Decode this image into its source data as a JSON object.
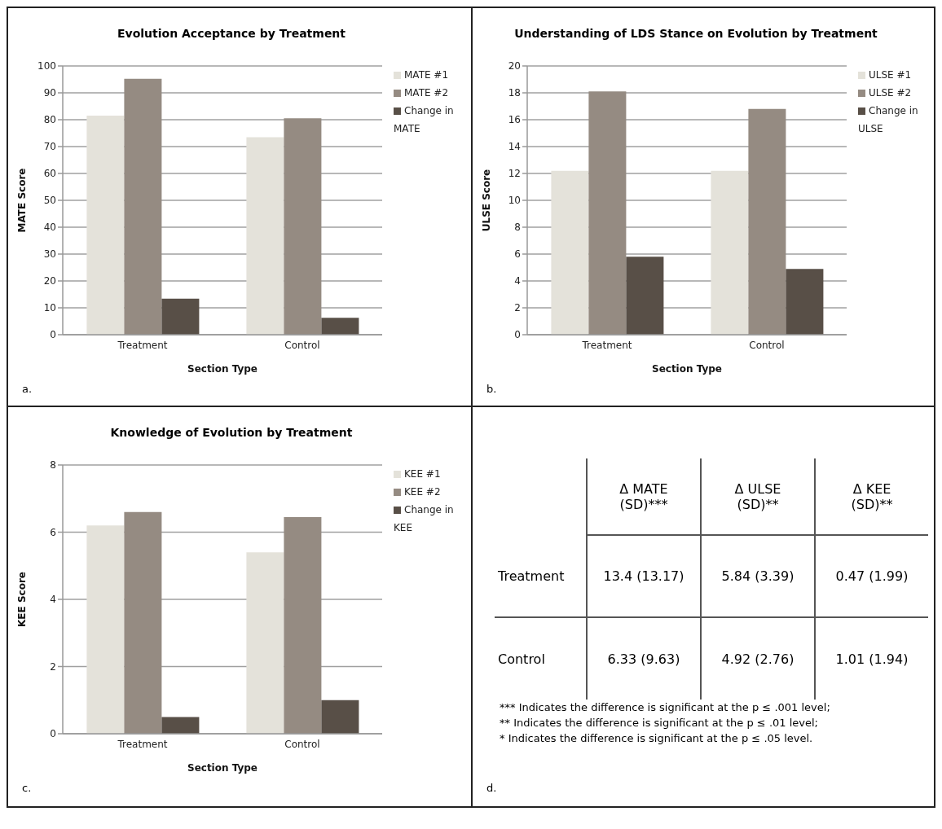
{
  "chart_data": [
    {
      "type": "bar",
      "title": "Evolution Acceptance by Treatment",
      "xlabel": "Section Type",
      "ylabel": "MATE Score",
      "categories": [
        "Treatment",
        "Control"
      ],
      "series": [
        {
          "name": "MATE #1",
          "color": "#e4e2da",
          "values": [
            81.5,
            73.5
          ]
        },
        {
          "name": "MATE #2",
          "color": "#958b82",
          "values": [
            95.2,
            80.5
          ]
        },
        {
          "name": "Change in MATE",
          "color": "#584f47",
          "values": [
            13.4,
            6.3
          ]
        }
      ],
      "ylim": [
        0,
        100
      ],
      "yticks": [
        0,
        10,
        20,
        30,
        40,
        50,
        60,
        70,
        80,
        90,
        100
      ],
      "grid": "y",
      "legend": "right",
      "annotations": [
        "a."
      ]
    },
    {
      "type": "bar",
      "title": "Understanding of LDS Stance on Evolution by Treatment",
      "xlabel": "Section Type",
      "ylabel": "ULSE Score",
      "categories": [
        "Treatment",
        "Control"
      ],
      "series": [
        {
          "name": "ULSE #1",
          "color": "#e4e2da",
          "values": [
            12.2,
            12.2
          ]
        },
        {
          "name": "ULSE #2",
          "color": "#958b82",
          "values": [
            18.1,
            16.8
          ]
        },
        {
          "name": "Change in ULSE",
          "color": "#584f47",
          "values": [
            5.8,
            4.9
          ]
        }
      ],
      "ylim": [
        0,
        20
      ],
      "yticks": [
        0,
        2,
        4,
        6,
        8,
        10,
        12,
        14,
        16,
        18,
        20
      ],
      "grid": "y",
      "legend": "right",
      "annotations": [
        "b."
      ]
    },
    {
      "type": "bar",
      "title": "Knowledge of Evolution by Treatment",
      "xlabel": "Section Type",
      "ylabel": "KEE Score",
      "categories": [
        "Treatment",
        "Control"
      ],
      "series": [
        {
          "name": "KEE #1",
          "color": "#e4e2da",
          "values": [
            6.2,
            5.4
          ]
        },
        {
          "name": "KEE #2",
          "color": "#958b82",
          "values": [
            6.6,
            6.45
          ]
        },
        {
          "name": "Change in KEE",
          "color": "#584f47",
          "values": [
            0.5,
            1.0
          ]
        }
      ],
      "ylim": [
        0,
        8
      ],
      "yticks": [
        0,
        2,
        4,
        6,
        8
      ],
      "grid": "y",
      "legend": "right",
      "annotations": [
        "c."
      ]
    },
    {
      "type": "other",
      "annotations": [
        "Δ MATE (SD)***",
        "Δ ULSE (SD)**",
        "Δ KEE (SD)**",
        "Treatment",
        "13.4 (13.17)",
        "5.84 (3.39)",
        "0.47 (1.99)",
        "Control",
        "6.33 (9.63)",
        "4.92 (2.76)",
        "1.01 (1.94)",
        "*** Indicates the difference is significant at the p ≤ .001 level;",
        "** Indicates the difference is significant at the p ≤ .01 level;",
        "* Indicates the difference is significant at the p ≤ .05 level.",
        "d."
      ]
    }
  ]
}
